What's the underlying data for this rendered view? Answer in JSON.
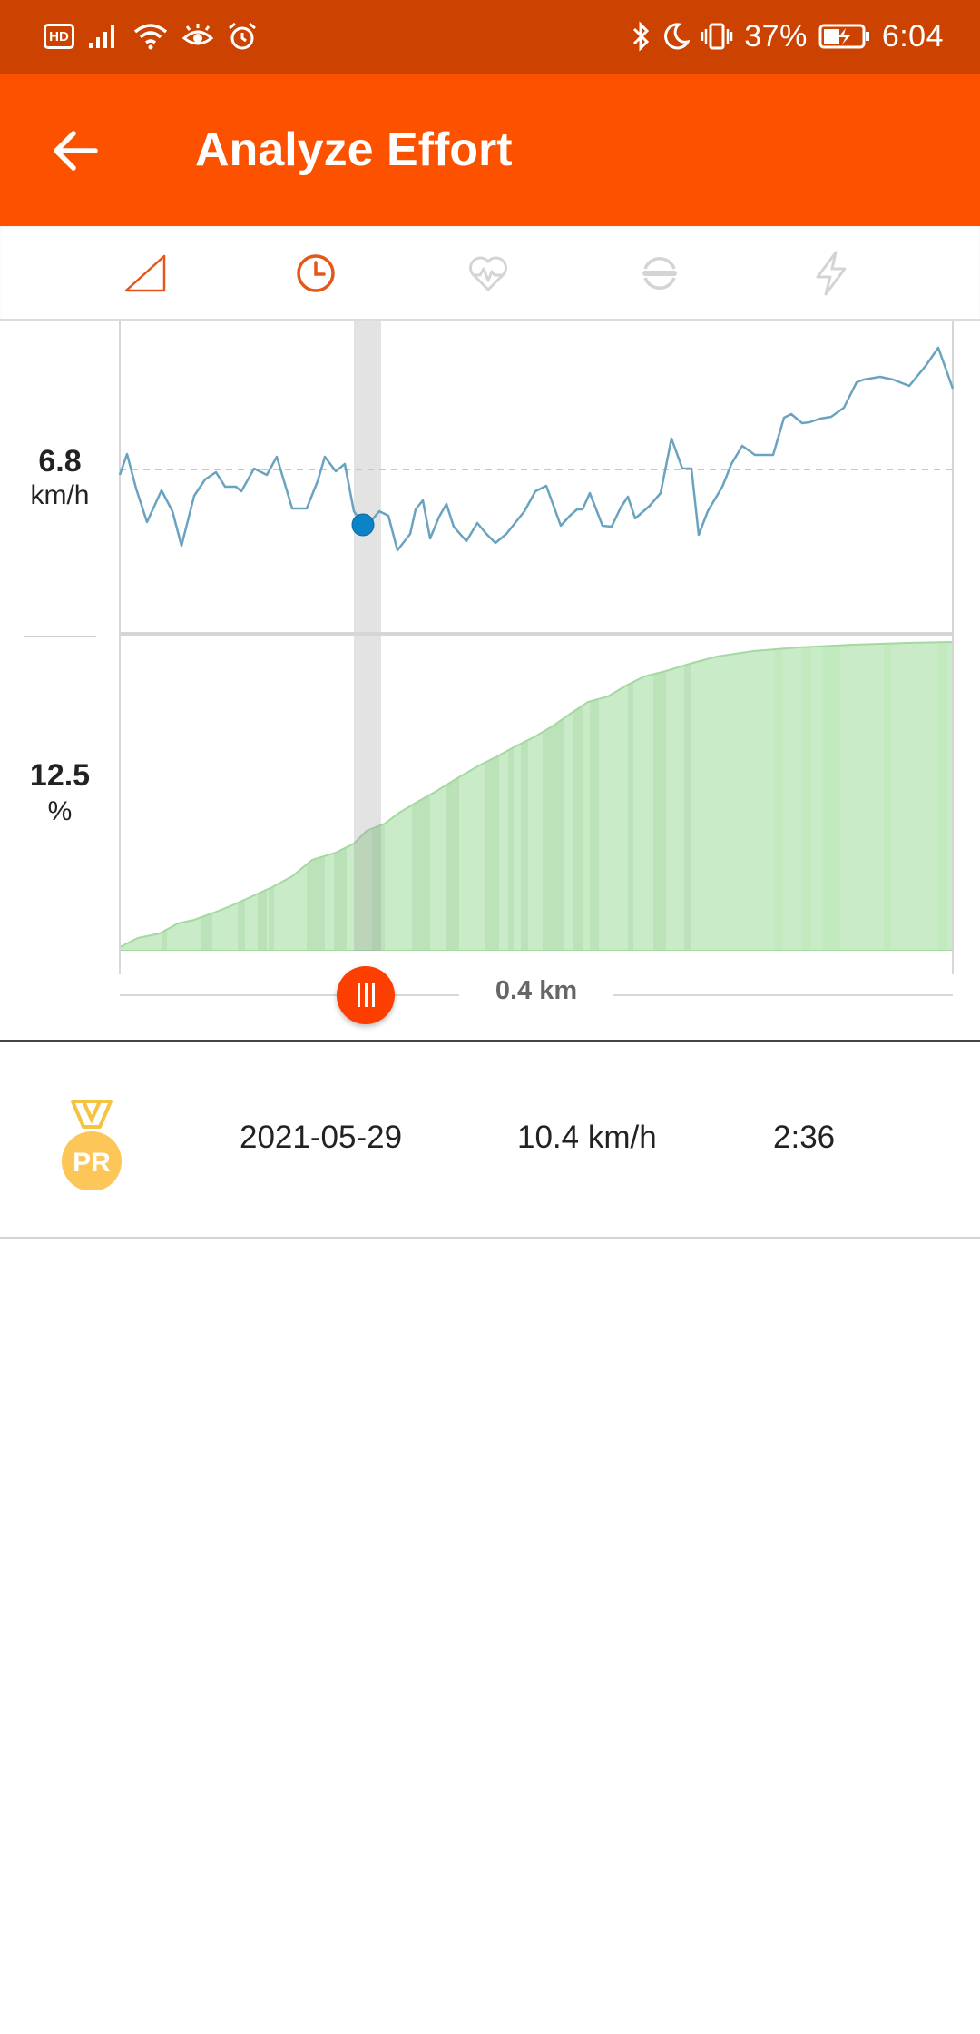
{
  "status_bar": {
    "left_badge": "HD",
    "battery_percent": "37%",
    "time": "6:04",
    "left_icons": [
      "signal-icon",
      "wifi-icon",
      "eye-comfort-icon",
      "alarm-icon"
    ],
    "right_icons": [
      "bluetooth-icon",
      "moon-icon",
      "vibrate-icon",
      "battery-charging-icon"
    ]
  },
  "app_bar": {
    "title": "Analyze Effort",
    "back_icon": "arrow-left-icon",
    "colors": {
      "status": "#cc4200",
      "bar": "#fc5200"
    }
  },
  "tabs": [
    {
      "icon": "elevation-icon",
      "active": false
    },
    {
      "icon": "clock-icon",
      "active": true
    },
    {
      "icon": "heart-rate-icon",
      "active": false
    },
    {
      "icon": "cadence-icon",
      "active": false
    },
    {
      "icon": "power-icon",
      "active": false
    }
  ],
  "chart": {
    "speed": {
      "value": "6.8",
      "unit": "km/h"
    },
    "grade": {
      "value": "12.5",
      "unit": "%"
    },
    "colors": {
      "speed_line": "#6aa3c0",
      "grade_fill": "#bfe7bd",
      "cursor": "#0a84c6"
    }
  },
  "scrubber": {
    "distance": "0.4 km"
  },
  "efforts": [
    {
      "badge": "PR",
      "date": "2021-05-29",
      "speed": "10.4 km/h",
      "time": "2:36"
    }
  ]
}
